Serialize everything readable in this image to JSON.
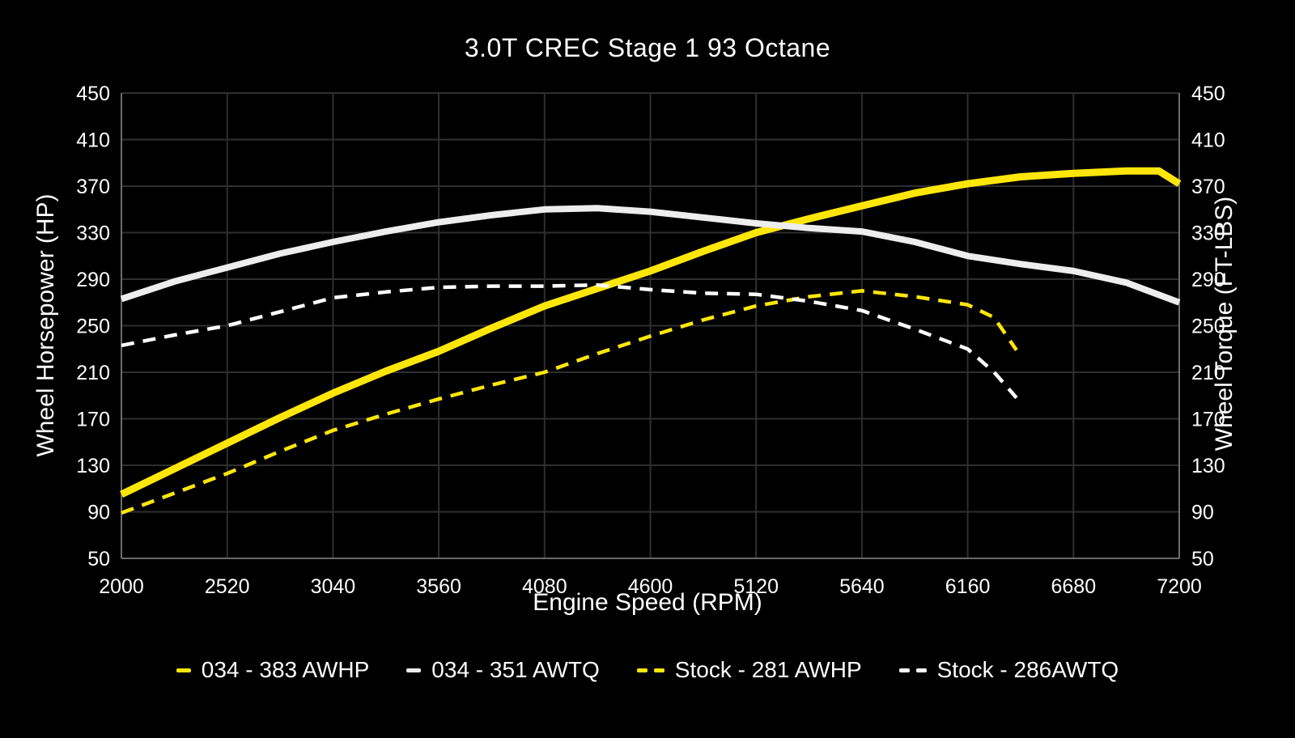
{
  "title": "3.0T CREC Stage 1 93 Octane",
  "axes": {
    "x_label": "Engine Speed (RPM)",
    "y_left_label": "Wheel Horsepower (HP)",
    "y_right_label": "Wheel Torque (FT-LBS)"
  },
  "colors": {
    "background": "#000000",
    "text": "#fdfdfd",
    "grid": "#2f2f2f",
    "spine": "#7d7d7d",
    "accent_yellow": "#ffe60a",
    "accent_white": "#ededed"
  },
  "chart_data": {
    "type": "line",
    "title": "3.0T CREC Stage 1 93 Octane",
    "xlabel": "Engine Speed (RPM)",
    "ylabel_left": "Wheel Horsepower (HP)",
    "ylabel_right": "Wheel Torque (FT-LBS)",
    "xlim": [
      2000,
      7200
    ],
    "ylim": [
      50,
      450
    ],
    "x_ticks": [
      2000,
      2520,
      3040,
      3560,
      4080,
      4600,
      5120,
      5640,
      6160,
      6680,
      7200
    ],
    "y_ticks_left": [
      50,
      90,
      130,
      170,
      210,
      250,
      290,
      330,
      370,
      410,
      450
    ],
    "y_ticks_right": [
      50,
      90,
      130,
      170,
      210,
      250,
      290,
      330,
      370,
      410,
      450
    ],
    "grid": true,
    "legend_position": "bottom",
    "series": [
      {
        "name": "034 - 383 AWHP",
        "axis": "left",
        "color": "#ffe60a",
        "dash": "solid",
        "line_width": 9,
        "rpm": [
          2000,
          2260,
          2520,
          2780,
          3040,
          3300,
          3560,
          3820,
          4080,
          4340,
          4600,
          4860,
          5120,
          5380,
          5640,
          5900,
          6160,
          6420,
          6680,
          6940,
          7100,
          7200
        ],
        "values": [
          105,
          127,
          149,
          171,
          192,
          211,
          228,
          248,
          267,
          282,
          297,
          314,
          330,
          342,
          353,
          364,
          372,
          378,
          381,
          383,
          383,
          372
        ]
      },
      {
        "name": "034 - 351 AWTQ",
        "axis": "right",
        "color": "#ededed",
        "dash": "solid",
        "line_width": 8,
        "rpm": [
          2000,
          2260,
          2520,
          2780,
          3040,
          3300,
          3560,
          3820,
          4080,
          4340,
          4600,
          4860,
          5120,
          5380,
          5640,
          5900,
          6160,
          6420,
          6680,
          6940,
          7200
        ],
        "values": [
          273,
          288,
          300,
          312,
          322,
          331,
          339,
          345,
          350,
          351,
          348,
          343,
          338,
          334,
          331,
          322,
          310,
          303,
          297,
          287,
          270
        ]
      },
      {
        "name": "Stock - 281 AWHP",
        "axis": "left",
        "color": "#ffe60a",
        "dash": "dashed",
        "line_width": 4.5,
        "rpm": [
          2000,
          2260,
          2520,
          2780,
          3040,
          3300,
          3560,
          3820,
          4080,
          4340,
          4600,
          4860,
          5120,
          5380,
          5640,
          5900,
          6160,
          6290,
          6400
        ],
        "values": [
          89,
          106,
          123,
          142,
          160,
          174,
          187,
          199,
          210,
          226,
          241,
          255,
          267,
          275,
          280,
          275,
          268,
          257,
          229
        ]
      },
      {
        "name": "Stock - 286AWTQ",
        "axis": "right",
        "color": "#fdfdfd",
        "dash": "dashed",
        "line_width": 4.5,
        "rpm": [
          2000,
          2260,
          2520,
          2780,
          3040,
          3300,
          3560,
          3820,
          4080,
          4340,
          4600,
          4860,
          5120,
          5380,
          5640,
          5900,
          6160,
          6290,
          6400
        ],
        "values": [
          233,
          242,
          250,
          262,
          274,
          279,
          283,
          284,
          284,
          285,
          281,
          278,
          277,
          271,
          263,
          247,
          230,
          210,
          188
        ]
      }
    ]
  }
}
